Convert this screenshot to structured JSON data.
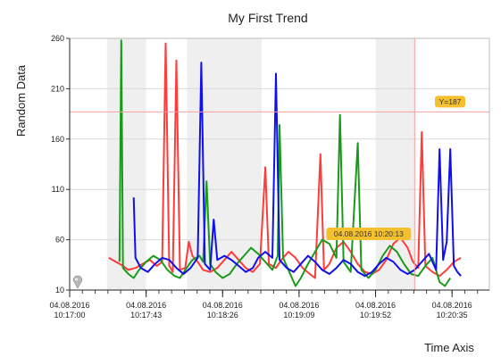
{
  "chart_data": {
    "type": "line",
    "title": "My First Trend",
    "xlabel": "Time Axis",
    "ylabel": "Random Data",
    "ylim": [
      10,
      260
    ],
    "y_ticks": [
      10,
      60,
      110,
      160,
      210,
      260
    ],
    "x_range": [
      "2016-08-04 10:17:00",
      "2016-08-04 10:20:56"
    ],
    "x_ticks": [
      {
        "time": "2016-08-04 10:17:00",
        "date_label": "04.08.2016",
        "time_label": "10:17:00"
      },
      {
        "time": "2016-08-04 10:17:43",
        "date_label": "04.08.2016",
        "time_label": "10:17:43"
      },
      {
        "time": "2016-08-04 10:18:26",
        "date_label": "04.08.2016",
        "time_label": "10:18:26"
      },
      {
        "time": "2016-08-04 10:19:09",
        "date_label": "04.08.2016",
        "time_label": "10:19:09"
      },
      {
        "time": "2016-08-04 10:19:52",
        "date_label": "04.08.2016",
        "time_label": "10:19:52"
      },
      {
        "time": "2016-08-04 10:20:35",
        "date_label": "04.08.2016",
        "time_label": "10:20:35"
      }
    ],
    "grid": true,
    "shaded_bands": [
      [
        "2016-08-04 10:17:21",
        "2016-08-04 10:17:43"
      ],
      [
        "2016-08-04 10:18:06",
        "2016-08-04 10:18:48"
      ],
      [
        "2016-08-04 10:19:52",
        "2016-08-04 10:20:14"
      ]
    ],
    "cursor_y": {
      "value": 187,
      "label": "Y=187",
      "color": "#f4a0a0"
    },
    "cursor_x": {
      "time": "2016-08-04 10:20:14",
      "label": "04.08.2016 10:20:13",
      "color": "#f4a0a0"
    },
    "tag_color": "#f5c02e",
    "series": [
      {
        "color": "#ff3b3b",
        "points": [
          [
            "10:17:22",
            42
          ],
          [
            "10:17:26",
            38
          ],
          [
            "10:17:30",
            34
          ],
          [
            "10:17:33",
            30
          ],
          [
            "10:17:37",
            32
          ],
          [
            "10:17:41",
            36
          ],
          [
            "10:17:45",
            40
          ],
          [
            "10:17:49",
            34
          ],
          [
            "10:17:52",
            38
          ],
          [
            "10:17:54",
            255
          ],
          [
            "10:17:56",
            34
          ],
          [
            "10:17:58",
            28
          ],
          [
            "10:18:00",
            238
          ],
          [
            "10:18:02",
            30
          ],
          [
            "10:18:05",
            32
          ],
          [
            "10:18:07",
            58
          ],
          [
            "10:18:09",
            44
          ],
          [
            "10:18:12",
            38
          ],
          [
            "10:18:15",
            30
          ],
          [
            "10:18:19",
            28
          ],
          [
            "10:18:23",
            32
          ],
          [
            "10:18:27",
            40
          ],
          [
            "10:18:31",
            48
          ],
          [
            "10:18:35",
            40
          ],
          [
            "10:18:39",
            32
          ],
          [
            "10:18:43",
            28
          ],
          [
            "10:18:47",
            36
          ],
          [
            "10:18:50",
            132
          ],
          [
            "10:18:52",
            36
          ],
          [
            "10:18:56",
            32
          ],
          [
            "10:18:59",
            40
          ],
          [
            "10:19:03",
            48
          ],
          [
            "10:19:07",
            42
          ],
          [
            "10:19:11",
            32
          ],
          [
            "10:19:15",
            26
          ],
          [
            "10:19:18",
            22
          ],
          [
            "10:19:21",
            145
          ],
          [
            "10:19:23",
            30
          ],
          [
            "10:19:26",
            36
          ],
          [
            "10:19:30",
            52
          ],
          [
            "10:19:34",
            58
          ],
          [
            "10:19:38",
            48
          ],
          [
            "10:19:42",
            36
          ],
          [
            "10:19:46",
            28
          ],
          [
            "10:19:50",
            26
          ],
          [
            "10:19:54",
            30
          ],
          [
            "10:19:58",
            40
          ],
          [
            "10:20:02",
            56
          ],
          [
            "10:20:06",
            62
          ],
          [
            "10:20:10",
            52
          ],
          [
            "10:20:13",
            38
          ],
          [
            "10:20:16",
            32
          ],
          [
            "10:20:18",
            167
          ],
          [
            "10:20:20",
            34
          ],
          [
            "10:20:24",
            28
          ],
          [
            "10:20:28",
            24
          ],
          [
            "10:20:32",
            30
          ],
          [
            "10:20:36",
            38
          ],
          [
            "10:20:40",
            42
          ]
        ]
      },
      {
        "color": "#1a9a1a",
        "points": [
          [
            "10:17:28",
            38
          ],
          [
            "10:17:29",
            258
          ],
          [
            "10:17:30",
            32
          ],
          [
            "10:17:33",
            26
          ],
          [
            "10:17:36",
            22
          ],
          [
            "10:17:39",
            30
          ],
          [
            "10:17:43",
            38
          ],
          [
            "10:17:47",
            44
          ],
          [
            "10:17:51",
            40
          ],
          [
            "10:17:55",
            30
          ],
          [
            "10:17:59",
            24
          ],
          [
            "10:18:02",
            22
          ],
          [
            "10:18:05",
            30
          ],
          [
            "10:18:09",
            40
          ],
          [
            "10:18:13",
            44
          ],
          [
            "10:18:15",
            38
          ],
          [
            "10:18:17",
            118
          ],
          [
            "10:18:19",
            36
          ],
          [
            "10:18:22",
            28
          ],
          [
            "10:18:26",
            22
          ],
          [
            "10:18:30",
            26
          ],
          [
            "10:18:34",
            36
          ],
          [
            "10:18:38",
            44
          ],
          [
            "10:18:42",
            52
          ],
          [
            "10:18:46",
            46
          ],
          [
            "10:18:50",
            38
          ],
          [
            "10:18:54",
            30
          ],
          [
            "10:18:57",
            44
          ],
          [
            "10:18:58",
            174
          ],
          [
            "10:19:00",
            42
          ],
          [
            "10:19:04",
            26
          ],
          [
            "10:19:07",
            14
          ],
          [
            "10:19:10",
            22
          ],
          [
            "10:19:14",
            36
          ],
          [
            "10:19:18",
            48
          ],
          [
            "10:19:22",
            60
          ],
          [
            "10:19:26",
            56
          ],
          [
            "10:19:30",
            42
          ],
          [
            "10:19:32",
            184
          ],
          [
            "10:19:34",
            38
          ],
          [
            "10:19:38",
            28
          ],
          [
            "10:19:42",
            156
          ],
          [
            "10:19:44",
            30
          ],
          [
            "10:19:48",
            22
          ],
          [
            "10:19:52",
            30
          ],
          [
            "10:19:56",
            44
          ],
          [
            "10:20:00",
            54
          ],
          [
            "10:20:04",
            48
          ],
          [
            "10:20:08",
            36
          ],
          [
            "10:20:12",
            26
          ],
          [
            "10:20:16",
            24
          ],
          [
            "10:20:20",
            34
          ],
          [
            "10:20:24",
            42
          ],
          [
            "10:20:28",
            18
          ],
          [
            "10:20:31",
            14
          ],
          [
            "10:20:34",
            22
          ]
        ]
      },
      {
        "color": "#1010ee",
        "points": [
          [
            "10:17:36",
            102
          ],
          [
            "10:17:37",
            42
          ],
          [
            "10:17:40",
            32
          ],
          [
            "10:17:44",
            28
          ],
          [
            "10:17:48",
            36
          ],
          [
            "10:17:52",
            42
          ],
          [
            "10:17:56",
            40
          ],
          [
            "10:18:00",
            32
          ],
          [
            "10:18:04",
            26
          ],
          [
            "10:18:08",
            32
          ],
          [
            "10:18:12",
            42
          ],
          [
            "10:18:14",
            236
          ],
          [
            "10:18:16",
            36
          ],
          [
            "10:18:19",
            30
          ],
          [
            "10:18:21",
            80
          ],
          [
            "10:18:23",
            40
          ],
          [
            "10:18:27",
            44
          ],
          [
            "10:18:31",
            40
          ],
          [
            "10:18:35",
            34
          ],
          [
            "10:18:39",
            28
          ],
          [
            "10:18:43",
            32
          ],
          [
            "10:18:46",
            42
          ],
          [
            "10:18:50",
            48
          ],
          [
            "10:18:54",
            42
          ],
          [
            "10:18:56",
            225
          ],
          [
            "10:18:58",
            40
          ],
          [
            "10:19:02",
            32
          ],
          [
            "10:19:06",
            28
          ],
          [
            "10:19:10",
            36
          ],
          [
            "10:19:14",
            44
          ],
          [
            "10:19:18",
            38
          ],
          [
            "10:19:22",
            30
          ],
          [
            "10:19:26",
            26
          ],
          [
            "10:19:30",
            32
          ],
          [
            "10:19:34",
            40
          ],
          [
            "10:19:38",
            36
          ],
          [
            "10:19:42",
            28
          ],
          [
            "10:19:46",
            24
          ],
          [
            "10:19:50",
            28
          ],
          [
            "10:19:54",
            36
          ],
          [
            "10:19:58",
            42
          ],
          [
            "10:20:02",
            38
          ],
          [
            "10:20:06",
            30
          ],
          [
            "10:20:10",
            26
          ],
          [
            "10:20:14",
            30
          ],
          [
            "10:20:18",
            38
          ],
          [
            "10:20:22",
            46
          ],
          [
            "10:20:26",
            30
          ],
          [
            "10:20:28",
            150
          ],
          [
            "10:20:30",
            40
          ],
          [
            "10:20:32",
            58
          ],
          [
            "10:20:34",
            150
          ],
          [
            "10:20:36",
            34
          ],
          [
            "10:20:38",
            28
          ],
          [
            "10:20:40",
            24
          ]
        ]
      }
    ]
  }
}
